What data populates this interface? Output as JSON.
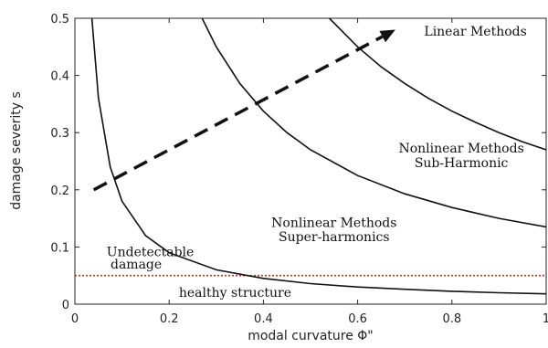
{
  "chart_data": {
    "type": "line",
    "title": "",
    "xlabel": "modal curvature Φ\"",
    "ylabel": "damage severity s",
    "xlim": [
      0,
      1
    ],
    "ylim": [
      0,
      0.5
    ],
    "xticks": [
      0,
      0.2,
      0.4,
      0.6,
      0.8,
      1
    ],
    "xtick_labels": [
      "0",
      "0.2",
      "0.4",
      "0.6",
      "0.8",
      "1"
    ],
    "yticks": [
      0,
      0.1,
      0.2,
      0.3,
      0.4,
      0.5
    ],
    "ytick_labels": [
      "0",
      "0.1",
      "0.2",
      "0.3",
      "0.4",
      "0.5"
    ],
    "grid": false,
    "series": [
      {
        "values_x": [
          0.036,
          0.05,
          0.075,
          0.1,
          0.15,
          0.2,
          0.3,
          0.4,
          0.5,
          0.6,
          0.7,
          0.8,
          0.9,
          1.0
        ],
        "values_y": [
          0.5,
          0.36,
          0.24,
          0.18,
          0.12,
          0.09,
          0.06,
          0.045,
          0.036,
          0.03,
          0.026,
          0.0225,
          0.02,
          0.018
        ]
      },
      {
        "values_x": [
          0.27,
          0.3,
          0.35,
          0.4,
          0.45,
          0.5,
          0.6,
          0.7,
          0.8,
          0.9,
          1.0
        ],
        "values_y": [
          0.5,
          0.45,
          0.386,
          0.3375,
          0.3,
          0.27,
          0.225,
          0.193,
          0.169,
          0.15,
          0.135
        ]
      },
      {
        "values_x": [
          0.54,
          0.6,
          0.65,
          0.7,
          0.75,
          0.8,
          0.85,
          0.9,
          0.95,
          1.0
        ],
        "values_y": [
          0.5,
          0.45,
          0.415,
          0.386,
          0.36,
          0.3375,
          0.318,
          0.3,
          0.284,
          0.27
        ]
      }
    ],
    "arrow": {
      "from": [
        0.04,
        0.2
      ],
      "to": [
        0.68,
        0.48
      ],
      "style": "dashed"
    },
    "threshold_line": {
      "y": 0.05,
      "color": "#e02020",
      "style": "dotted"
    },
    "annotations": [
      {
        "text": "Linear Methods",
        "x": 0.85,
        "y": 0.47
      },
      {
        "text": "Nonlinear Methods",
        "x": 0.82,
        "y": 0.265
      },
      {
        "text": "Sub-Harmonic",
        "x": 0.82,
        "y": 0.24
      },
      {
        "text": "Nonlinear Methods",
        "x": 0.55,
        "y": 0.135
      },
      {
        "text": "Super-harmonics",
        "x": 0.55,
        "y": 0.11
      },
      {
        "text": "Undetectable",
        "x": 0.16,
        "y": 0.084
      },
      {
        "text": "damage",
        "x": 0.13,
        "y": 0.062
      },
      {
        "text": "healthy structure",
        "x": 0.34,
        "y": 0.013
      }
    ]
  }
}
